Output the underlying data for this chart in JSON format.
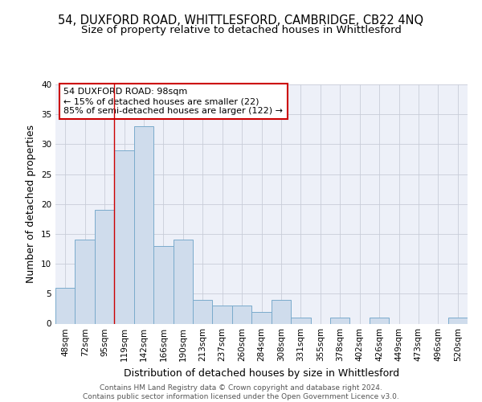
{
  "title_line1": "54, DUXFORD ROAD, WHITTLESFORD, CAMBRIDGE, CB22 4NQ",
  "title_line2": "Size of property relative to detached houses in Whittlesford",
  "xlabel": "Distribution of detached houses by size in Whittlesford",
  "ylabel": "Number of detached properties",
  "bin_labels": [
    "48sqm",
    "72sqm",
    "95sqm",
    "119sqm",
    "142sqm",
    "166sqm",
    "190sqm",
    "213sqm",
    "237sqm",
    "260sqm",
    "284sqm",
    "308sqm",
    "331sqm",
    "355sqm",
    "378sqm",
    "402sqm",
    "426sqm",
    "449sqm",
    "473sqm",
    "496sqm",
    "520sqm"
  ],
  "bar_values": [
    6,
    14,
    19,
    29,
    33,
    13,
    14,
    4,
    3,
    3,
    2,
    4,
    1,
    0,
    1,
    0,
    1,
    0,
    0,
    0,
    1
  ],
  "bar_color": "#cfdcec",
  "bar_edge_color": "#7aabcc",
  "grid_color": "#c8cdd8",
  "bg_color": "#edf0f8",
  "annotation_box_text": "54 DUXFORD ROAD: 98sqm\n← 15% of detached houses are smaller (22)\n85% of semi-detached houses are larger (122) →",
  "annotation_box_color": "#cc0000",
  "vline_x": 2.5,
  "ylim": [
    0,
    40
  ],
  "yticks": [
    0,
    5,
    10,
    15,
    20,
    25,
    30,
    35,
    40
  ],
  "footer_text": "Contains HM Land Registry data © Crown copyright and database right 2024.\nContains public sector information licensed under the Open Government Licence v3.0.",
  "title_fontsize": 10.5,
  "subtitle_fontsize": 9.5,
  "axis_label_fontsize": 9,
  "tick_fontsize": 7.5,
  "annotation_fontsize": 8,
  "footer_fontsize": 6.5
}
